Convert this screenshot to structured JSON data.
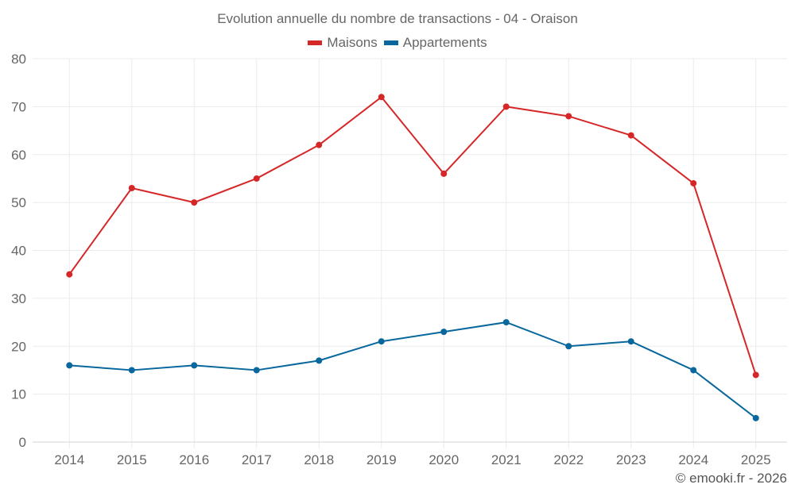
{
  "chart_data": {
    "type": "line",
    "title": "Evolution annuelle du nombre de transactions - 04 - Oraison",
    "xlabel": "",
    "ylabel": "",
    "categories": [
      "2014",
      "2015",
      "2016",
      "2017",
      "2018",
      "2019",
      "2020",
      "2021",
      "2022",
      "2023",
      "2024",
      "2025"
    ],
    "series": [
      {
        "name": "Maisons",
        "color": "#d62728",
        "values": [
          35,
          53,
          50,
          55,
          62,
          72,
          56,
          70,
          68,
          64,
          54,
          14
        ]
      },
      {
        "name": "Appartements",
        "color": "#08679c",
        "values": [
          16,
          15,
          16,
          15,
          17,
          21,
          23,
          25,
          20,
          21,
          15,
          5
        ]
      }
    ],
    "ylim": [
      0,
      80
    ],
    "yticks": [
      0,
      10,
      20,
      30,
      40,
      50,
      60,
      70,
      80
    ],
    "grid": true,
    "legend_position": "top-center"
  },
  "credit": "© emooki.fr - 2026"
}
